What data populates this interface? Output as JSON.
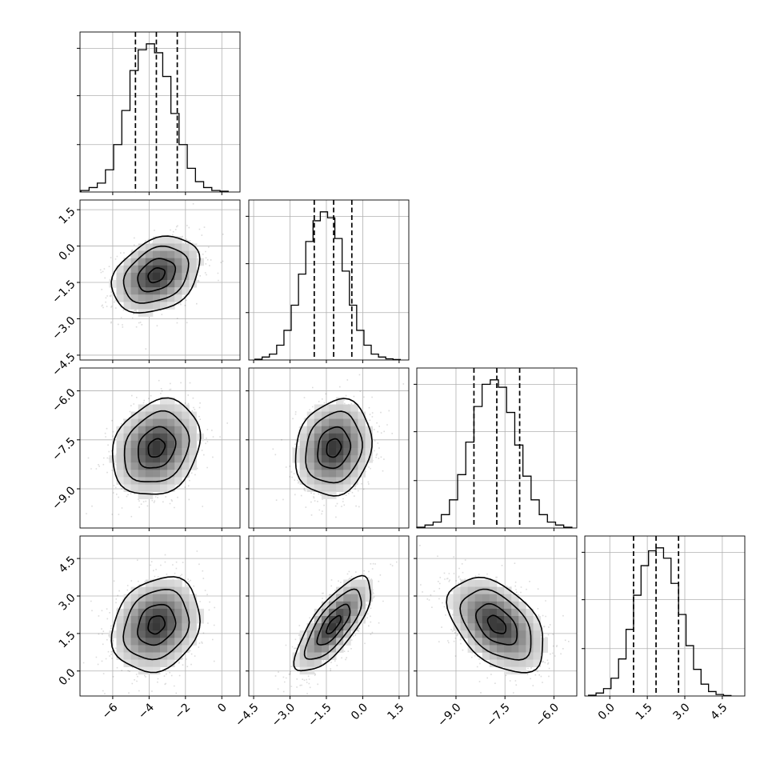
{
  "chart_data": {
    "type": "corner",
    "n_params": 4,
    "grid": true,
    "colors": {
      "line": "#000000",
      "grid": "#b0b0b0",
      "points": "#000000",
      "background": "#ffffff"
    },
    "params": [
      {
        "index": 0,
        "range": [
          -7.8,
          1.0
        ],
        "ticks": [
          -6,
          -4,
          -2,
          0
        ],
        "tick_labels": [
          "−6",
          "−4",
          "−2",
          "0"
        ],
        "quantiles": [
          -4.75,
          -3.6,
          -2.45
        ],
        "hist": {
          "bins": [
            -7.75,
            -7.3,
            -6.85,
            -6.4,
            -5.95,
            -5.5,
            -5.05,
            -4.6,
            -4.15,
            -3.7,
            -3.25,
            -2.8,
            -2.35,
            -1.9,
            -1.45,
            -1.0,
            -0.55,
            -0.1,
            0.35
          ],
          "counts": [
            0.01,
            0.03,
            0.06,
            0.15,
            0.32,
            0.55,
            0.82,
            0.96,
            1.0,
            0.94,
            0.78,
            0.53,
            0.32,
            0.16,
            0.07,
            0.03,
            0.01,
            0.005
          ]
        }
      },
      {
        "index": 1,
        "range": [
          -4.7,
          1.9
        ],
        "ticks": [
          -4.5,
          -3.0,
          -1.5,
          0.0,
          1.5
        ],
        "tick_labels": [
          "−4.5",
          "−3.0",
          "−1.5",
          "0.0",
          "1.5"
        ],
        "quantiles": [
          -2.0,
          -1.2,
          -0.45
        ],
        "hist": {
          "bins": [
            -4.45,
            -4.15,
            -3.85,
            -3.55,
            -3.25,
            -2.95,
            -2.65,
            -2.35,
            -2.05,
            -1.75,
            -1.45,
            -1.15,
            -0.85,
            -0.55,
            -0.25,
            0.05,
            0.35,
            0.65,
            0.95,
            1.25,
            1.55
          ],
          "counts": [
            0.005,
            0.02,
            0.04,
            0.1,
            0.2,
            0.37,
            0.58,
            0.8,
            0.94,
            1.0,
            0.96,
            0.82,
            0.6,
            0.37,
            0.2,
            0.1,
            0.04,
            0.02,
            0.008,
            0.003
          ]
        }
      },
      {
        "index": 2,
        "range": [
          -10.2,
          -5.3
        ],
        "ticks": [
          -9.0,
          -7.5,
          -6.0
        ],
        "tick_labels": [
          "−9.0",
          "−7.5",
          "−6.0"
        ],
        "quantiles": [
          -8.45,
          -7.75,
          -7.05
        ],
        "hist": {
          "bins": [
            -10.2,
            -9.95,
            -9.7,
            -9.45,
            -9.2,
            -8.95,
            -8.7,
            -8.45,
            -8.2,
            -7.95,
            -7.7,
            -7.45,
            -7.2,
            -6.95,
            -6.7,
            -6.45,
            -6.2,
            -5.95,
            -5.7,
            -5.45
          ],
          "counts": [
            0.005,
            0.02,
            0.04,
            0.09,
            0.19,
            0.36,
            0.58,
            0.82,
            0.97,
            1.0,
            0.95,
            0.78,
            0.56,
            0.35,
            0.19,
            0.09,
            0.04,
            0.02,
            0.005
          ]
        }
      },
      {
        "index": 3,
        "range": [
          -1.0,
          5.4
        ],
        "ticks": [
          0.0,
          1.5,
          3.0,
          4.5
        ],
        "tick_labels": [
          "0.0",
          "1.5",
          "3.0",
          "4.5"
        ],
        "quantiles": [
          0.95,
          1.85,
          2.75
        ],
        "hist": {
          "bins": [
            -0.85,
            -0.55,
            -0.25,
            0.05,
            0.35,
            0.65,
            0.95,
            1.25,
            1.55,
            1.85,
            2.15,
            2.45,
            2.75,
            3.05,
            3.35,
            3.65,
            3.95,
            4.25,
            4.55,
            4.85
          ],
          "counts": [
            0.005,
            0.02,
            0.05,
            0.12,
            0.25,
            0.45,
            0.68,
            0.88,
            0.98,
            1.0,
            0.93,
            0.76,
            0.55,
            0.34,
            0.18,
            0.08,
            0.03,
            0.01,
            0.003
          ]
        }
      }
    ],
    "hist_y_ticks": [
      0.32,
      0.65,
      0.97
    ],
    "pairs": [
      {
        "row": 1,
        "col": 0,
        "mean": [
          -3.6,
          -1.2
        ],
        "sd": [
          1.15,
          0.75
        ],
        "corr": 0.3
      },
      {
        "row": 2,
        "col": 0,
        "mean": [
          -3.6,
          -7.75
        ],
        "sd": [
          1.15,
          0.7
        ],
        "corr": 0.2
      },
      {
        "row": 2,
        "col": 1,
        "mean": [
          -1.2,
          -7.75
        ],
        "sd": [
          0.75,
          0.7
        ],
        "corr": 0.15
      },
      {
        "row": 3,
        "col": 0,
        "mean": [
          -3.6,
          1.85
        ],
        "sd": [
          1.15,
          0.9
        ],
        "corr": 0.2
      },
      {
        "row": 3,
        "col": 1,
        "mean": [
          -1.2,
          1.85
        ],
        "sd": [
          0.75,
          0.9
        ],
        "corr": 0.75
      },
      {
        "row": 3,
        "col": 2,
        "mean": [
          -7.75,
          1.85
        ],
        "sd": [
          0.7,
          0.9
        ],
        "corr": -0.45
      }
    ],
    "contour_levels": [
      0.4,
      0.9,
      1.55,
      2.1
    ],
    "scatter_points_per_panel": 900
  }
}
